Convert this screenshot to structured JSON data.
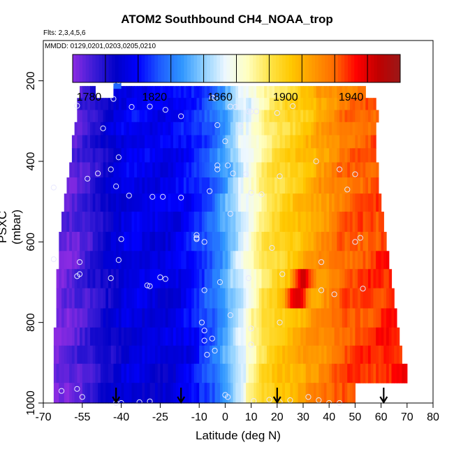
{
  "chart_data": {
    "type": "heatmap",
    "title": "ATOM2 Southbound CH4_NOAA_trop",
    "flights_label": "Flts: 2,3,4,5,6",
    "dates_label": "MMDD: 0129,0201,0203,0205,0210",
    "xlabel": "Latitude (deg N)",
    "ylabel": "PSXC (mbar)",
    "xlim": [
      -70,
      80
    ],
    "ylim": [
      1000,
      100
    ],
    "x_ticks": [
      -70,
      -55,
      -40,
      -25,
      -10,
      0,
      10,
      20,
      30,
      40,
      50,
      60,
      70,
      80
    ],
    "x_tick_labels": [
      "-70",
      "-55",
      "-40",
      "-25",
      "-10",
      "0",
      "10",
      "20",
      "30",
      "40",
      "50",
      "60",
      "70",
      "80"
    ],
    "y_ticks": [
      200,
      400,
      600,
      800,
      1000
    ],
    "y_tick_labels": [
      "200",
      "400",
      "600",
      "800",
      "1000"
    ],
    "colorbar": {
      "min": 1770,
      "max": 1970,
      "ticks": [
        1780,
        1820,
        1860,
        1900,
        1940
      ],
      "tick_labels": [
        "1780",
        "1820",
        "1860",
        "1900",
        "1940"
      ],
      "colors": [
        "#8b2be2",
        "#3a1bd6",
        "#0000c8",
        "#0000ff",
        "#1e5cff",
        "#2f96ff",
        "#8ed0ff",
        "#eef8ff",
        "#ffffc0",
        "#ffe44a",
        "#ffc800",
        "#ff9a00",
        "#ff6a00",
        "#ff0000",
        "#c00000",
        "#9a1818"
      ]
    },
    "layer_pressures": [
      225,
      260,
      285,
      320,
      350,
      385,
      420,
      460,
      500,
      550,
      600,
      645,
      690,
      740,
      790,
      835,
      880,
      925,
      975
    ],
    "layer_lat_ranges": [
      [
        -56,
        54
      ],
      [
        -57,
        58
      ],
      [
        -57,
        59
      ],
      [
        -58,
        58
      ],
      [
        -59,
        58
      ],
      [
        -59,
        58
      ],
      [
        -60,
        59
      ],
      [
        -61,
        59
      ],
      [
        -62,
        60
      ],
      [
        -63,
        61
      ],
      [
        -64,
        62
      ],
      [
        -64,
        63
      ],
      [
        -65,
        64
      ],
      [
        -65,
        65
      ],
      [
        -65,
        66
      ],
      [
        -66,
        67
      ],
      [
        -66,
        68
      ],
      [
        -66,
        70
      ],
      [
        -66,
        71
      ]
    ],
    "profile_lats": [
      -66,
      -60,
      -55,
      -50,
      -45,
      -40,
      -35,
      -30,
      -25,
      -20,
      -15,
      -10,
      -5,
      0,
      5,
      10,
      15,
      20,
      25,
      30,
      35,
      40,
      45,
      50,
      55,
      60,
      65,
      70
    ],
    "profile_ch4": [
      1771,
      1776,
      1781,
      1788,
      1796,
      1803,
      1806,
      1805,
      1804,
      1805,
      1810,
      1816,
      1825,
      1840,
      1857,
      1872,
      1888,
      1896,
      1902,
      1908,
      1915,
      1921,
      1929,
      1932,
      1934,
      1936,
      1938,
      1939
    ],
    "top_patch": {
      "lat_range": [
        -43,
        -40
      ],
      "pressure_range": [
        180,
        220
      ],
      "value": 1826
    },
    "gap": {
      "lat_range": [
        -50,
        -43
      ],
      "pressure_range": [
        200,
        248
      ]
    },
    "bottom_gap": {
      "lat_range": [
        50,
        71
      ],
      "pressure_range": [
        945,
        1000
      ]
    },
    "hotspots": [
      {
        "lat": 28,
        "pressure": 740,
        "value": 1955
      },
      {
        "lat": 30,
        "pressure": 690,
        "value": 1958
      },
      {
        "lat": 27,
        "pressure": 745,
        "value": 1950
      }
    ],
    "sample_points": [
      [
        -43,
        200
      ],
      [
        -41,
        200
      ],
      [
        -43,
        245
      ],
      [
        -57,
        262
      ],
      [
        -36,
        265
      ],
      [
        -29,
        264
      ],
      [
        -23,
        272
      ],
      [
        -17,
        288
      ],
      [
        -5,
        242
      ],
      [
        -4,
        243
      ],
      [
        2,
        264
      ],
      [
        4,
        265
      ],
      [
        9,
        276
      ],
      [
        10,
        276
      ],
      [
        12,
        276
      ],
      [
        20,
        280
      ],
      [
        26,
        263
      ],
      [
        6,
        312
      ],
      [
        -47,
        318
      ],
      [
        -3,
        310
      ],
      [
        0,
        350
      ],
      [
        -3,
        410
      ],
      [
        -3,
        420
      ],
      [
        1,
        410
      ],
      [
        -41,
        390
      ],
      [
        -44,
        420
      ],
      [
        -49,
        430
      ],
      [
        -53,
        443
      ],
      [
        -66,
        465
      ],
      [
        -42,
        462
      ],
      [
        -37,
        485
      ],
      [
        -28,
        488
      ],
      [
        -24,
        488
      ],
      [
        -17,
        490
      ],
      [
        -6,
        474
      ],
      [
        3,
        430
      ],
      [
        8,
        432
      ],
      [
        10,
        478
      ],
      [
        14,
        482
      ],
      [
        21,
        437
      ],
      [
        35,
        400
      ],
      [
        44,
        420
      ],
      [
        50,
        432
      ],
      [
        47,
        470
      ],
      [
        -40,
        593
      ],
      [
        -11,
        583
      ],
      [
        -11,
        590
      ],
      [
        -8,
        600
      ],
      [
        2,
        530
      ],
      [
        -11,
        593
      ],
      [
        -41,
        645
      ],
      [
        -66,
        643
      ],
      [
        -56,
        650
      ],
      [
        -57,
        685
      ],
      [
        -56,
        680
      ],
      [
        -44,
        690
      ],
      [
        -25,
        688
      ],
      [
        -23,
        692
      ],
      [
        -30,
        708
      ],
      [
        -29,
        710
      ],
      [
        -8,
        720
      ],
      [
        -2,
        700
      ],
      [
        9,
        690
      ],
      [
        22,
        680
      ],
      [
        18,
        615
      ],
      [
        37,
        650
      ],
      [
        50,
        600
      ],
      [
        52,
        590
      ],
      [
        37,
        720
      ],
      [
        42,
        730
      ],
      [
        53,
        716
      ],
      [
        2,
        782
      ],
      [
        -9,
        800
      ],
      [
        -8,
        820
      ],
      [
        -5,
        840
      ],
      [
        -8,
        845
      ],
      [
        10,
        815
      ],
      [
        10,
        855
      ],
      [
        -4,
        870
      ],
      [
        -7,
        880
      ],
      [
        21,
        800
      ],
      [
        -57,
        965
      ],
      [
        -55,
        985
      ],
      [
        -42,
        1000
      ],
      [
        -40,
        1000
      ],
      [
        -33,
        998
      ],
      [
        -29,
        996
      ],
      [
        0,
        980
      ],
      [
        1,
        985
      ],
      [
        11,
        995
      ],
      [
        17,
        992
      ],
      [
        21,
        998
      ],
      [
        25,
        993
      ],
      [
        32,
        985
      ],
      [
        36,
        993
      ],
      [
        40,
        1000
      ],
      [
        44,
        1000
      ],
      [
        -63,
        970
      ]
    ],
    "arrows": [
      -42,
      -17,
      20,
      61
    ]
  }
}
